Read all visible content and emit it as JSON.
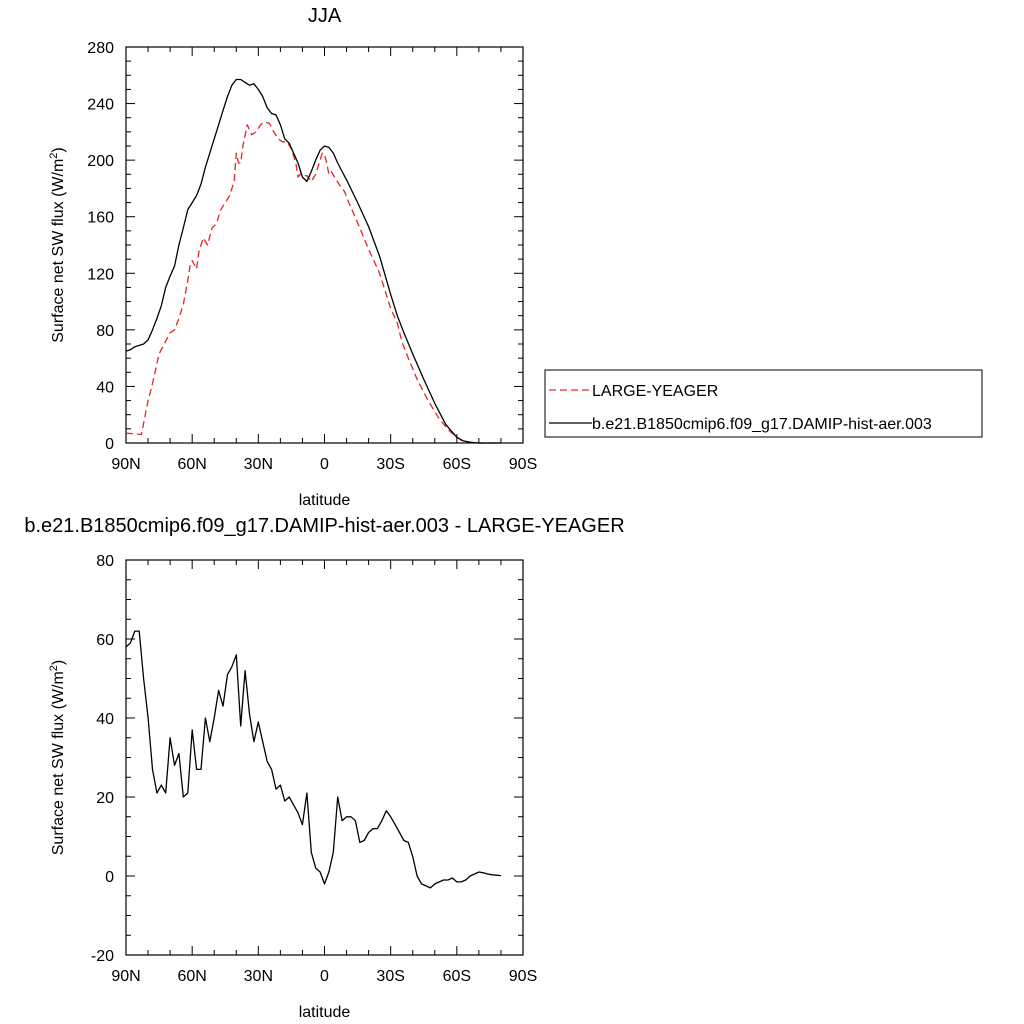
{
  "chart_data": [
    {
      "type": "line",
      "title": "JJA",
      "xlabel": "latitude",
      "ylabel": "Surface net SW flux (W/m²)",
      "ylabel_parts": [
        "Surface net SW flux (W/m",
        "2",
        ")"
      ],
      "xlim": [
        90,
        -90
      ],
      "ylim": [
        0,
        280
      ],
      "x_ticks": [
        90,
        60,
        30,
        0,
        -30,
        -60,
        -90
      ],
      "x_tick_labels": [
        "90N",
        "60N",
        "30N",
        "0",
        "30S",
        "60S",
        "90S"
      ],
      "y_ticks": [
        0,
        40,
        80,
        120,
        160,
        200,
        240,
        280
      ],
      "y_tick_labels": [
        "0",
        "40",
        "80",
        "120",
        "160",
        "200",
        "240",
        "280"
      ],
      "grid": false,
      "legend": "right",
      "series": [
        {
          "name": "LARGE-YEAGER",
          "color": "#e8232a",
          "dash": "dashed",
          "x": [
            90,
            83,
            80,
            78,
            75,
            72,
            70,
            68,
            66,
            64,
            62,
            61,
            60,
            58,
            57,
            55,
            53,
            51,
            49,
            47,
            45,
            43,
            41,
            40,
            39,
            38,
            37,
            35,
            33,
            31,
            29,
            27,
            25,
            23,
            21,
            19,
            17,
            15,
            13,
            12,
            11,
            10,
            8,
            6,
            4,
            2,
            1,
            0,
            -1,
            -2,
            -3,
            -5,
            -7,
            -9,
            -11,
            -13,
            -16,
            -20,
            -25,
            -30,
            -33,
            -35,
            -38,
            -42,
            -47,
            -52,
            -57,
            -62,
            -66,
            -70,
            -75,
            -80
          ],
          "y": [
            7,
            6,
            30,
            42,
            63,
            72,
            78,
            80,
            88,
            98,
            115,
            125,
            129,
            123,
            135,
            145,
            140,
            152,
            155,
            165,
            170,
            175,
            185,
            205,
            198,
            198,
            210,
            225,
            218,
            220,
            225,
            227,
            226,
            220,
            215,
            213,
            213,
            208,
            198,
            188,
            190,
            189,
            189,
            185,
            190,
            200,
            205,
            204,
            198,
            190,
            192,
            187,
            182,
            178,
            170,
            163,
            152,
            137,
            120,
            95,
            85,
            72,
            60,
            45,
            30,
            17,
            8,
            2,
            0.5,
            0,
            0,
            0
          ]
        },
        {
          "name": "b.e21.B1850cmip6.f09_g17.DAMIP-hist-aer.003",
          "color": "#000000",
          "dash": "solid",
          "x": [
            90,
            88,
            86,
            84,
            82,
            80,
            78,
            76,
            74,
            72,
            70,
            68,
            66,
            64,
            62,
            60,
            58,
            56,
            54,
            52,
            50,
            48,
            46,
            44,
            42,
            40,
            38,
            36,
            34,
            32,
            30,
            28,
            26,
            24,
            22,
            20,
            18,
            16,
            14,
            12,
            10,
            8,
            6,
            4,
            2,
            0,
            -2,
            -4,
            -6,
            -8,
            -10,
            -15,
            -20,
            -25,
            -30,
            -33,
            -36,
            -40,
            -45,
            -50,
            -55,
            -60,
            -63,
            -66,
            -70,
            -75,
            -80
          ],
          "y": [
            65,
            66,
            68,
            69,
            70,
            73,
            80,
            88,
            97,
            110,
            118,
            125,
            140,
            152,
            165,
            170,
            175,
            183,
            195,
            205,
            215,
            225,
            235,
            245,
            253,
            257,
            257,
            255,
            253,
            254,
            250,
            245,
            237,
            233,
            232,
            225,
            215,
            212,
            205,
            198,
            188,
            185,
            192,
            200,
            207,
            210,
            209,
            205,
            198,
            192,
            186,
            170,
            153,
            132,
            105,
            90,
            78,
            63,
            45,
            28,
            13,
            4,
            1.5,
            0.5,
            0,
            0,
            0
          ]
        }
      ]
    },
    {
      "type": "line",
      "title": "b.e21.B1850cmip6.f09_g17.DAMIP-hist-aer.003 - LARGE-YEAGER",
      "xlabel": "latitude",
      "ylabel": "Surface net SW flux (W/m²)",
      "ylabel_parts": [
        "Surface net SW flux (W/m",
        "2",
        ")"
      ],
      "xlim": [
        90,
        -90
      ],
      "ylim": [
        -20,
        80
      ],
      "x_ticks": [
        90,
        60,
        30,
        0,
        -30,
        -60,
        -90
      ],
      "x_tick_labels": [
        "90N",
        "60N",
        "30N",
        "0",
        "30S",
        "60S",
        "90S"
      ],
      "y_ticks": [
        -20,
        0,
        20,
        40,
        60,
        80
      ],
      "y_tick_labels": [
        "-20",
        "0",
        "20",
        "40",
        "60",
        "80"
      ],
      "grid": false,
      "series": [
        {
          "color": "#000000",
          "dash": "solid",
          "x": [
            90,
            88,
            86,
            84,
            82,
            80,
            78,
            76,
            74,
            72,
            70,
            68,
            66,
            64,
            62,
            60,
            58,
            56,
            54,
            52,
            50,
            48,
            46,
            44,
            42,
            40,
            38,
            36,
            34,
            32,
            30,
            28,
            26,
            24,
            22,
            20,
            18,
            16,
            14,
            12,
            10,
            8,
            6,
            4,
            2,
            0,
            -2,
            -4,
            -6,
            -8,
            -10,
            -12,
            -14,
            -16,
            -18,
            -20,
            -22,
            -24,
            -26,
            -28,
            -30,
            -32,
            -34,
            -36,
            -38,
            -40,
            -42,
            -44,
            -46,
            -48,
            -50,
            -52,
            -54,
            -56,
            -58,
            -60,
            -62,
            -64,
            -66,
            -68,
            -70,
            -72,
            -74,
            -76,
            -78,
            -80
          ],
          "y": [
            58,
            59,
            62,
            62,
            50,
            40,
            27,
            21,
            23,
            21,
            35,
            28,
            31,
            20,
            21,
            37,
            27,
            27,
            40,
            34,
            40,
            47,
            43,
            51,
            53,
            56,
            38,
            52,
            41,
            34,
            39,
            34,
            29,
            27,
            22,
            23,
            19,
            20,
            18,
            16,
            13,
            21,
            6,
            2,
            1,
            -2,
            1,
            6,
            20,
            14,
            15,
            15,
            14,
            8.5,
            9,
            11,
            12,
            12,
            14,
            16.5,
            15,
            13,
            11,
            9,
            8.5,
            5,
            0,
            -2,
            -2.5,
            -3,
            -2,
            -1.5,
            -1,
            -1,
            -0.5,
            -1.5,
            -1.5,
            -1,
            0,
            0.5,
            1,
            0.8,
            0.5,
            0.3,
            0.2,
            0.1
          ]
        }
      ]
    }
  ]
}
